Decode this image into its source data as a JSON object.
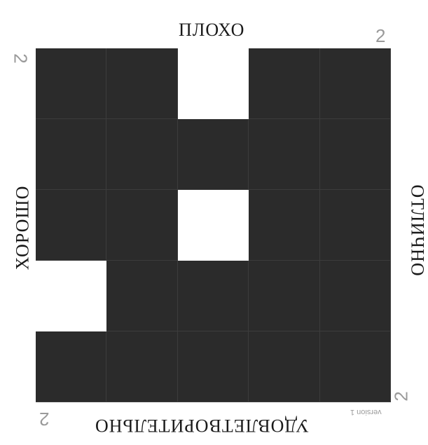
{
  "labels": {
    "top": "ПЛОХО",
    "left": "ХОРОШО",
    "right": "ОТЛИЧНО",
    "bottom": "УДОВЛЕТВОРИТЕЛЬНО"
  },
  "corner_numbers": {
    "top_right": "2",
    "top_left": "2",
    "bottom_left": "2",
    "bottom_right": "2"
  },
  "version": "version 1",
  "grid": {
    "rows": 5,
    "cols": 5,
    "cells": [
      [
        1,
        1,
        0,
        1,
        1
      ],
      [
        1,
        1,
        1,
        1,
        1
      ],
      [
        1,
        1,
        0,
        1,
        1
      ],
      [
        0,
        1,
        1,
        1,
        1
      ],
      [
        1,
        1,
        1,
        1,
        1
      ]
    ],
    "colors": {
      "filled": "#2b2b2b",
      "empty": "#ffffff"
    }
  }
}
